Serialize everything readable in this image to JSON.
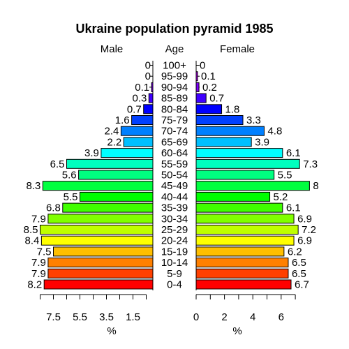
{
  "chart_data": {
    "type": "bar",
    "title": "Ukraine population pyramid 1985",
    "male_header": "Male",
    "age_header": "Age",
    "female_header": "Female",
    "age_groups": [
      "0-4",
      "5-9",
      "10-14",
      "15-19",
      "20-24",
      "25-29",
      "30-34",
      "35-39",
      "40-44",
      "45-49",
      "50-54",
      "55-59",
      "60-64",
      "65-69",
      "70-74",
      "75-79",
      "80-84",
      "85-89",
      "90-94",
      "95-99",
      "100+"
    ],
    "series": [
      {
        "name": "Male",
        "values": [
          8.2,
          7.9,
          7.9,
          7.5,
          8.4,
          8.5,
          7.9,
          6.8,
          5.5,
          8.3,
          5.6,
          6.5,
          3.9,
          2.2,
          2.4,
          1.6,
          0.7,
          0.3,
          0.1,
          0,
          0
        ]
      },
      {
        "name": "Female",
        "values": [
          6.7,
          6.5,
          6.5,
          6.2,
          6.9,
          7.2,
          6.9,
          6.1,
          5.2,
          8,
          5.5,
          7.3,
          6.1,
          3.9,
          4.8,
          3.3,
          1.8,
          0.7,
          0.2,
          0.1,
          0
        ]
      }
    ],
    "male_value_labels": [
      "8.2",
      "7.9",
      "7.9",
      "7.5",
      "8.4",
      "8.5",
      "7.9",
      "6.8",
      "5.5",
      "8.3",
      "5.6",
      "6.5",
      "3.9",
      "2.2",
      "2.4",
      "1.6",
      "0.7",
      "0.3",
      "0.1",
      "0",
      "0"
    ],
    "female_value_labels": [
      "6.7",
      "6.5",
      "6.5",
      "6.2",
      "6.9",
      "7.2",
      "6.9",
      "6.1",
      "5.2",
      "8",
      "5.5",
      "7.3",
      "6.1",
      "3.9",
      "4.8",
      "3.3",
      "1.8",
      "0.7",
      "0.2",
      "0.1",
      "0"
    ],
    "colors": [
      "#FF0000",
      "#FF4000",
      "#FF8000",
      "#FFBF00",
      "#FFFF00",
      "#BFFF00",
      "#80FF00",
      "#40FF00",
      "#00FF00",
      "#00FF40",
      "#00FF80",
      "#00FFBF",
      "#00FFFF",
      "#00BFFF",
      "#0080FF",
      "#0040FF",
      "#0000FF",
      "#4000FF",
      "#8000FF",
      "#BF00FF",
      "#FF00FF"
    ],
    "male_axis": {
      "ticks": [
        7.5,
        5.5,
        3.5,
        1.5
      ],
      "tick_labels": [
        "7.5",
        "5.5",
        "3.5",
        "1.5"
      ],
      "xlabel": "%",
      "xlim": [
        0,
        8.5
      ]
    },
    "female_axis": {
      "ticks": [
        0,
        2,
        4,
        6
      ],
      "tick_labels": [
        "0",
        "2",
        "4",
        "6"
      ],
      "xlabel": "%",
      "xlim": [
        0,
        8
      ]
    }
  }
}
